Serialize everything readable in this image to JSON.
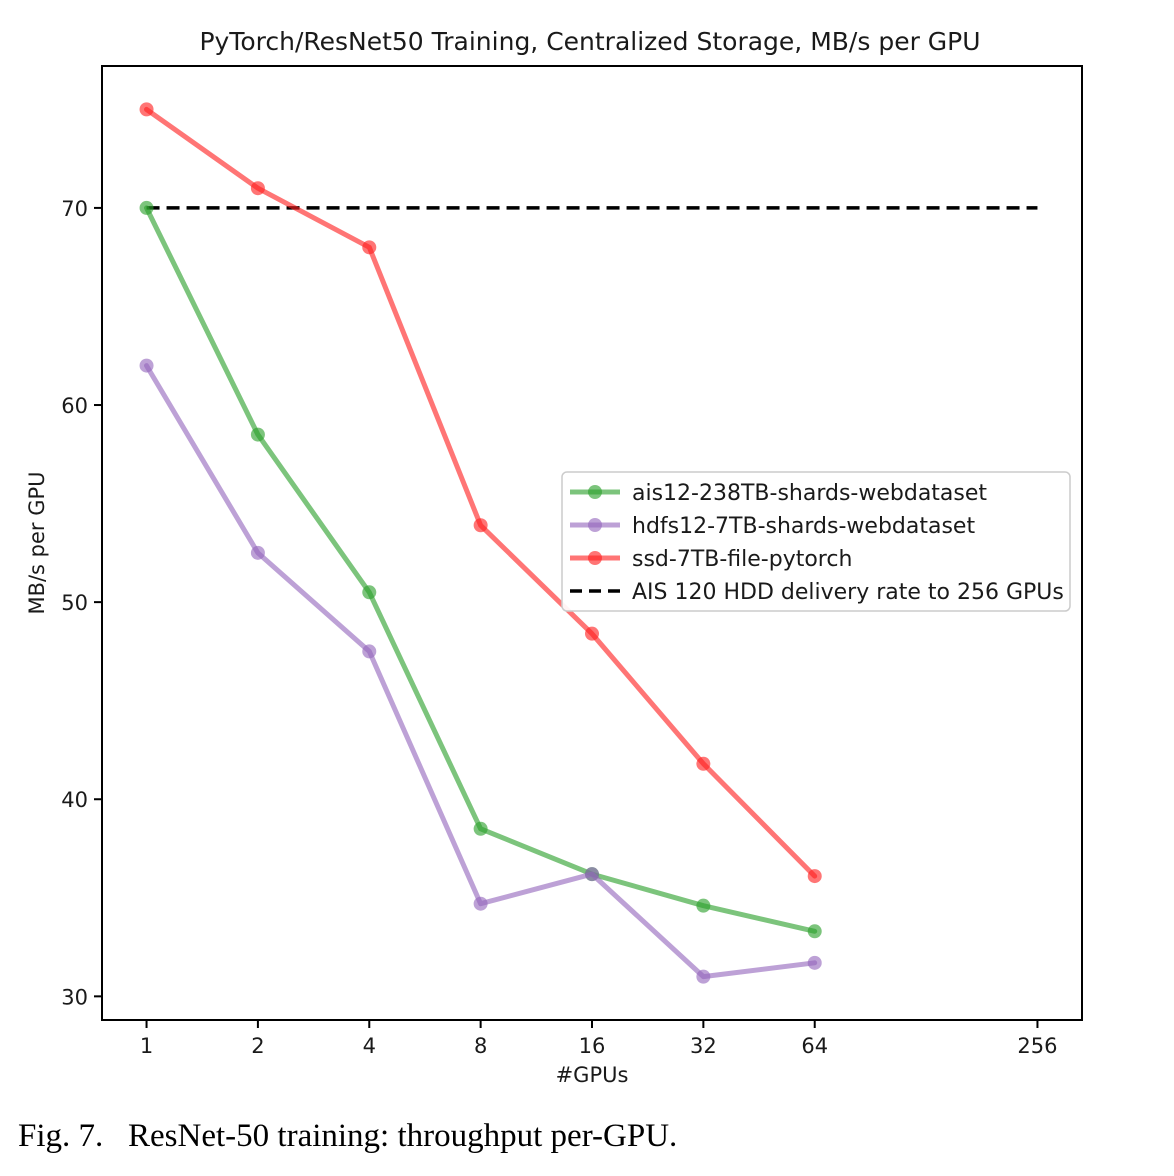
{
  "chart_data": {
    "type": "line",
    "title": "PyTorch/ResNet50 Training, Centralized Storage, MB/s per GPU",
    "xlabel": "#GPUs",
    "ylabel": "MB/s per GPU",
    "x_scale": "log2",
    "x_ticks": [
      1,
      2,
      4,
      8,
      16,
      32,
      64,
      256
    ],
    "x_tick_labels": [
      "1",
      "2",
      "4",
      "8",
      "16",
      "32",
      "64",
      "256"
    ],
    "xlim_log2": [
      -0.4,
      8.4
    ],
    "y_ticks": [
      30,
      40,
      50,
      60,
      70
    ],
    "y_tick_labels": [
      "30",
      "40",
      "50",
      "60",
      "70"
    ],
    "ylim": [
      28.8,
      77.2
    ],
    "grid": false,
    "legend_position": "center-right",
    "x": [
      1,
      2,
      4,
      8,
      16,
      32,
      64
    ],
    "series": [
      {
        "name": "ais12-238TB-shards-webdataset",
        "color": "#2ca02c",
        "values": [
          70.0,
          58.5,
          50.5,
          38.5,
          36.2,
          34.6,
          33.3
        ]
      },
      {
        "name": "hdfs12-7TB-shards-webdataset",
        "color": "#9467bd",
        "values": [
          62.0,
          52.5,
          47.5,
          34.7,
          36.2,
          31.0,
          31.7
        ]
      },
      {
        "name": "ssd-7TB-file-pytorch",
        "color": "#ff2020",
        "values": [
          75.0,
          71.0,
          68.0,
          53.9,
          48.4,
          41.8,
          36.1
        ]
      }
    ],
    "reference_line": {
      "name": "AIS 120 HDD delivery rate to 256 GPUs",
      "color": "#000000",
      "style": "dashed",
      "y": 70,
      "x_from": 1,
      "x_to": 256
    }
  },
  "caption": "Fig. 7.   ResNet-50 training: throughput per-GPU."
}
